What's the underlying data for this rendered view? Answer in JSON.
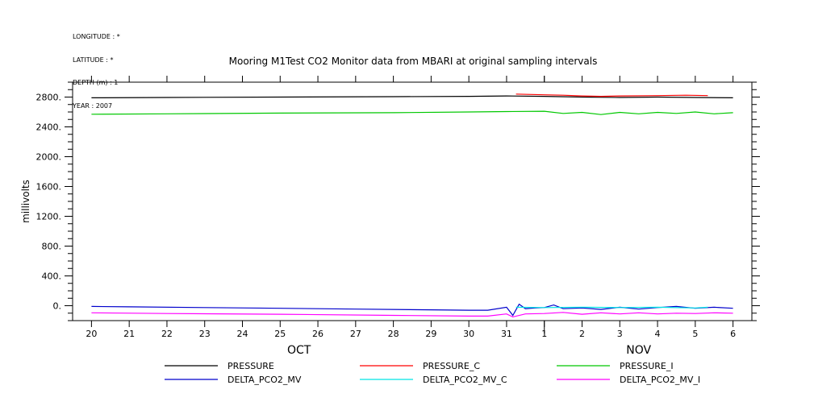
{
  "header": {
    "lines": [
      "LONGITUDE : *",
      "LATITUDE : *",
      "DEPTH (m) : 1",
      "YEAR : 2007"
    ]
  },
  "chart_data": {
    "type": "line",
    "title": "Mooring M1Test CO2 Monitor data from MBARI at original sampling intervals",
    "xlabel": "",
    "ylabel": "millivolts",
    "ylim": [
      -200,
      3000
    ],
    "yticks": [
      0,
      400,
      800,
      1200,
      1600,
      2000,
      2400,
      2800
    ],
    "ytick_labels": [
      "0.",
      "400.",
      "800.",
      "1200.",
      "1600.",
      "2000.",
      "2400.",
      "2800."
    ],
    "xlim": [
      "2007-10-19T12:00",
      "2007-11-06T12:00"
    ],
    "x_day_labels": [
      "20",
      "21",
      "22",
      "23",
      "24",
      "25",
      "26",
      "27",
      "28",
      "29",
      "30",
      "31",
      "1",
      "2",
      "3",
      "4",
      "5",
      "6"
    ],
    "x_month_labels": [
      {
        "label": "OCT",
        "center": "2007-10-25T12:00"
      },
      {
        "label": "NOV",
        "center": "2007-11-03T12:00"
      }
    ],
    "month_boundary": "2007-11-01T00:00",
    "grid": false,
    "legend_placement": "bottom",
    "series": [
      {
        "name": "PRESSURE",
        "color": "#000000",
        "x": [
          "2007-10-20",
          "2007-10-22",
          "2007-10-25",
          "2007-10-28",
          "2007-10-30",
          "2007-10-31",
          "2007-11-01",
          "2007-11-02",
          "2007-11-03",
          "2007-11-04",
          "2007-11-05",
          "2007-11-06"
        ],
        "values": [
          2790,
          2795,
          2800,
          2805,
          2810,
          2815,
          2810,
          2800,
          2795,
          2800,
          2795,
          2790
        ]
      },
      {
        "name": "PRESSURE_C",
        "color": "#ff0000",
        "x": [
          "2007-10-31T06:00",
          "2007-11-01",
          "2007-11-01T12:00",
          "2007-11-02",
          "2007-11-02T12:00",
          "2007-11-03",
          "2007-11-04",
          "2007-11-04T18:00",
          "2007-11-05T08:00"
        ],
        "values": [
          2840,
          2830,
          2825,
          2815,
          2810,
          2815,
          2820,
          2825,
          2820
        ]
      },
      {
        "name": "PRESSURE_I",
        "color": "#00c800",
        "x": [
          "2007-10-20",
          "2007-10-22",
          "2007-10-25",
          "2007-10-28",
          "2007-10-30",
          "2007-10-31",
          "2007-11-01",
          "2007-11-01T12:00",
          "2007-11-02",
          "2007-11-02T12:00",
          "2007-11-03",
          "2007-11-03T12:00",
          "2007-11-04",
          "2007-11-04T12:00",
          "2007-11-05",
          "2007-11-05T12:00",
          "2007-11-06"
        ],
        "values": [
          2570,
          2575,
          2585,
          2590,
          2600,
          2605,
          2610,
          2580,
          2595,
          2565,
          2595,
          2575,
          2595,
          2580,
          2600,
          2575,
          2590
        ]
      },
      {
        "name": "DELTA_PCO2_MV",
        "color": "#0000cc",
        "x": [
          "2007-10-20",
          "2007-10-21",
          "2007-10-23",
          "2007-10-25",
          "2007-10-27",
          "2007-10-29",
          "2007-10-30",
          "2007-10-30T12:00",
          "2007-10-31",
          "2007-10-31T04:00",
          "2007-10-31T08:00",
          "2007-10-31T12:00",
          "2007-10-31T18:00",
          "2007-11-01",
          "2007-11-01T06:00",
          "2007-11-01T12:00",
          "2007-11-02",
          "2007-11-02T12:00",
          "2007-11-03",
          "2007-11-03T12:00",
          "2007-11-04",
          "2007-11-04T12:00",
          "2007-11-05",
          "2007-11-05T12:00",
          "2007-11-06"
        ],
        "values": [
          -10,
          -15,
          -25,
          -35,
          -45,
          -55,
          -60,
          -60,
          -20,
          -130,
          20,
          -40,
          -30,
          -25,
          10,
          -40,
          -30,
          -50,
          -20,
          -45,
          -25,
          -10,
          -35,
          -20,
          -35
        ]
      },
      {
        "name": "DELTA_PCO2_MV_C",
        "color": "#00e5e5",
        "x": [
          "2007-10-31T06:00",
          "2007-11-01",
          "2007-11-02",
          "2007-11-03",
          "2007-11-04",
          "2007-11-05",
          "2007-11-05T08:00"
        ],
        "values": [
          -20,
          -25,
          -20,
          -25,
          -20,
          -30,
          -20
        ]
      },
      {
        "name": "DELTA_PCO2_MV_I",
        "color": "#ff00ff",
        "x": [
          "2007-10-20",
          "2007-10-22",
          "2007-10-25",
          "2007-10-28",
          "2007-10-30",
          "2007-10-30T12:00",
          "2007-10-31",
          "2007-10-31T04:00",
          "2007-10-31T12:00",
          "2007-11-01",
          "2007-11-01T12:00",
          "2007-11-02",
          "2007-11-02T12:00",
          "2007-11-03",
          "2007-11-03T12:00",
          "2007-11-04",
          "2007-11-04T12:00",
          "2007-11-05",
          "2007-11-05T12:00",
          "2007-11-06"
        ],
        "values": [
          -95,
          -105,
          -115,
          -130,
          -140,
          -140,
          -110,
          -150,
          -110,
          -105,
          -90,
          -115,
          -95,
          -110,
          -95,
          -110,
          -100,
          -105,
          -95,
          -100
        ]
      }
    ]
  }
}
